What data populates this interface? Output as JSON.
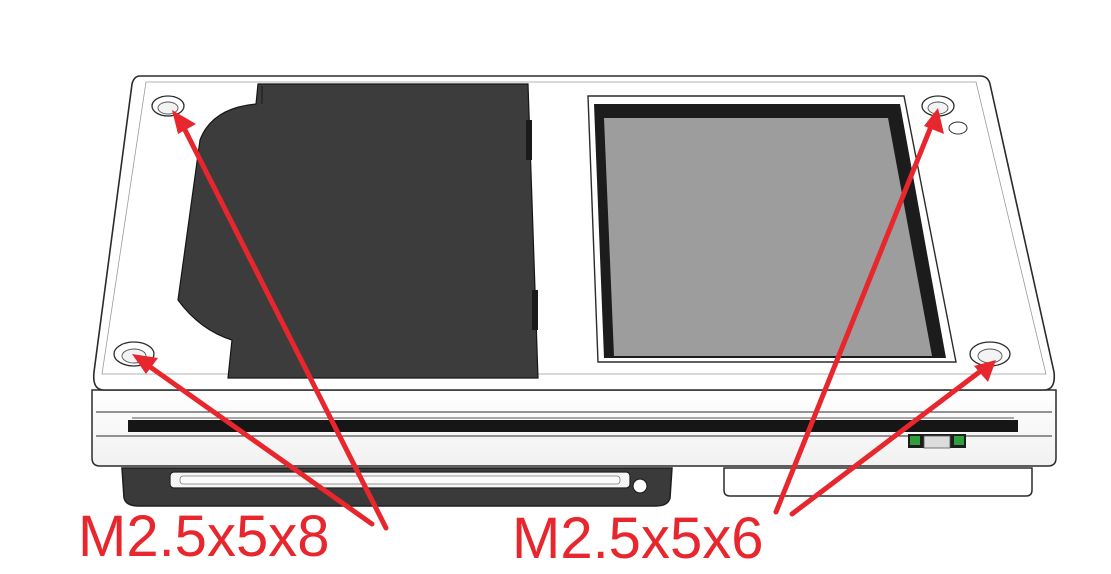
{
  "annotations": {
    "left_callout": "M2.5x5x8",
    "right_callout": "M2.5x5x6"
  },
  "colors": {
    "arrow": "#e8262d",
    "label": "#e8262d",
    "outline": "#2b2b2b",
    "body": "#ffffff",
    "left_module": "#3c3c3c",
    "screen": "#9d9d9d",
    "screen_bezel": "#1c1c1c",
    "connector": "#2a2a2a",
    "pcb_green": "#2f9e3c"
  },
  "icons": [
    "screw-hole",
    "arrow"
  ]
}
